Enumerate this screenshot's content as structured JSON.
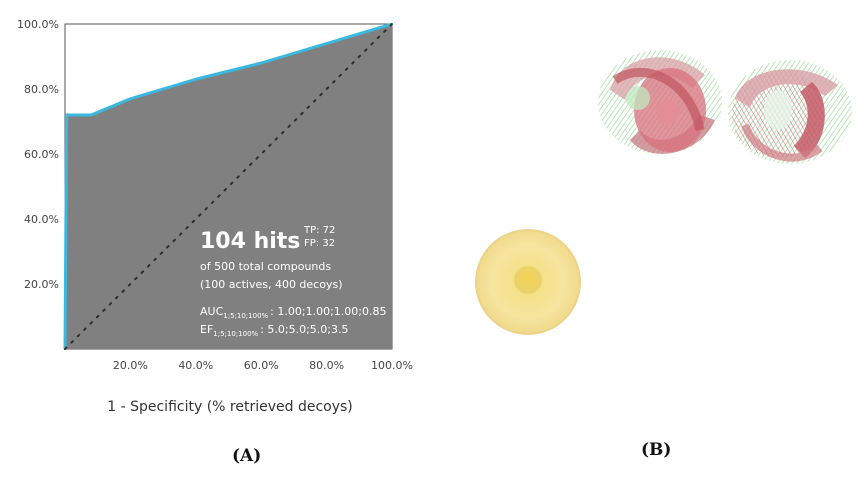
{
  "chart_data": {
    "type": "area",
    "xlabel": "1 - Specificity (% retrieved decoys)",
    "ylabel": "",
    "xlim": [
      0,
      100
    ],
    "ylim": [
      0,
      100
    ],
    "x_ticks": [
      "20.0%",
      "40.0%",
      "60.0%",
      "80.0%",
      "100.0%"
    ],
    "y_ticks": [
      "20.0%",
      "40.0%",
      "60.0%",
      "80.0%",
      "100.0%"
    ],
    "series": [
      {
        "x": [
          0,
          0.5,
          8,
          20,
          40,
          60,
          80,
          100
        ],
        "y": [
          0,
          72,
          72,
          77,
          83,
          88,
          94,
          100
        ],
        "color": "#3bb8e0",
        "fill": "#808080"
      }
    ],
    "diagonal": true,
    "annotation": {
      "hits": "104 hits",
      "tp": "TP: 72",
      "fp": "FP: 32",
      "line1": "of 500 total compounds",
      "line2": "(100 actives, 400 decoys)",
      "auc_label": "AUC",
      "auc_sub": "1;5;10;100%",
      "auc_values": ": 1.00;1.00;1.00;0.85",
      "ef_label": "EF",
      "ef_sub": "1;5;10;100%",
      "ef_values": ": 5.0;5.0;5.0;3.5"
    }
  },
  "panels": {
    "a": "(A)",
    "b": "(B)"
  },
  "colors": {
    "area": "#808080",
    "curve": "#3bb8e0",
    "hydrophobe": "#f4df8e",
    "acceptor": "#d86f7a",
    "donor": "#93d893"
  }
}
